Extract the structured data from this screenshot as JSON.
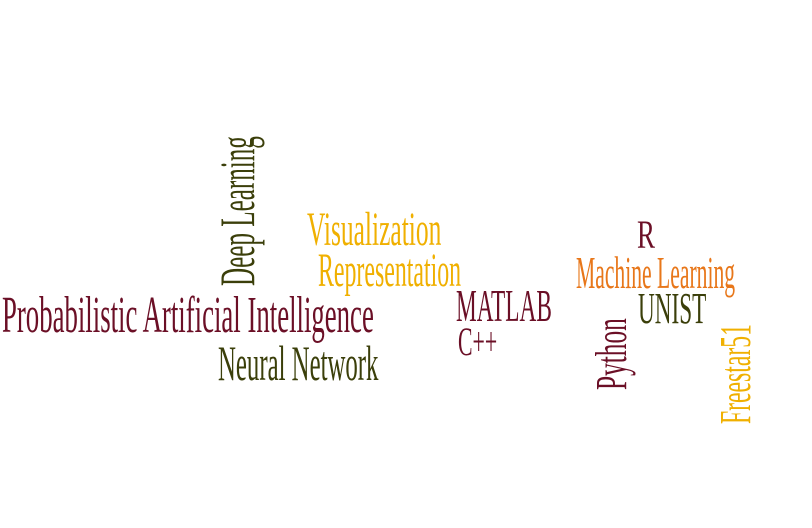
{
  "colors": {
    "maroon": "#6b0f26",
    "olive": "#3b3f0a",
    "gold": "#f0b000",
    "orange": "#e8771a"
  },
  "words": [
    {
      "id": "probabilistic-ai",
      "text": "Probabilistic Artificial Intelligence",
      "color": "maroon"
    },
    {
      "id": "neural-network",
      "text": "Neural Network",
      "color": "olive"
    },
    {
      "id": "deep-learning",
      "text": "Deep Learning",
      "color": "olive"
    },
    {
      "id": "visualization",
      "text": "Visualization",
      "color": "gold"
    },
    {
      "id": "representation",
      "text": "Representation",
      "color": "gold"
    },
    {
      "id": "matlab",
      "text": "MATLAB",
      "color": "maroon"
    },
    {
      "id": "cpp",
      "text": "C++",
      "color": "maroon"
    },
    {
      "id": "r",
      "text": "R",
      "color": "maroon"
    },
    {
      "id": "machine-learning",
      "text": "Machine Learning",
      "color": "orange"
    },
    {
      "id": "unist",
      "text": "UNIST",
      "color": "olive"
    },
    {
      "id": "python",
      "text": "Python",
      "color": "maroon"
    },
    {
      "id": "freestar51",
      "text": "Freestar51",
      "color": "gold"
    }
  ]
}
